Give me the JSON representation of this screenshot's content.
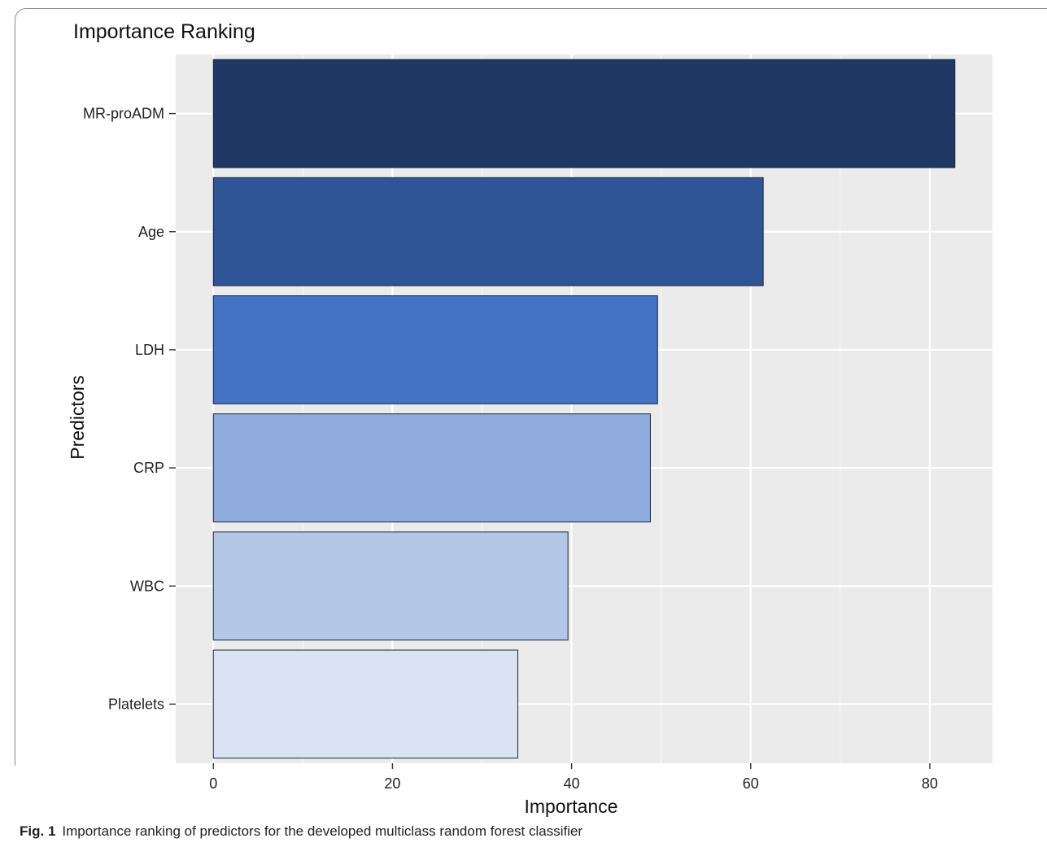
{
  "chart_data": {
    "type": "bar",
    "orientation": "horizontal",
    "title": "Importance Ranking",
    "xlabel": "Importance",
    "ylabel": "Predictors",
    "categories": [
      "MR-proADM",
      "Age",
      "LDH",
      "CRP",
      "WBC",
      "Platelets"
    ],
    "values": [
      82.8,
      61.4,
      49.6,
      48.8,
      39.6,
      34.0
    ],
    "colors": [
      "#213865",
      "#2f5597",
      "#4472c4",
      "#8faadc",
      "#b4c7e7",
      "#dae3f3"
    ],
    "xlim": [
      -4.2,
      87
    ],
    "xticks": [
      0,
      20,
      40,
      60,
      80
    ],
    "grid": true,
    "legend": "none",
    "panel_background": "#ebebeb"
  },
  "caption": {
    "label": "Fig. 1",
    "text": "Importance ranking of predictors for the developed multiclass random forest classifier"
  }
}
